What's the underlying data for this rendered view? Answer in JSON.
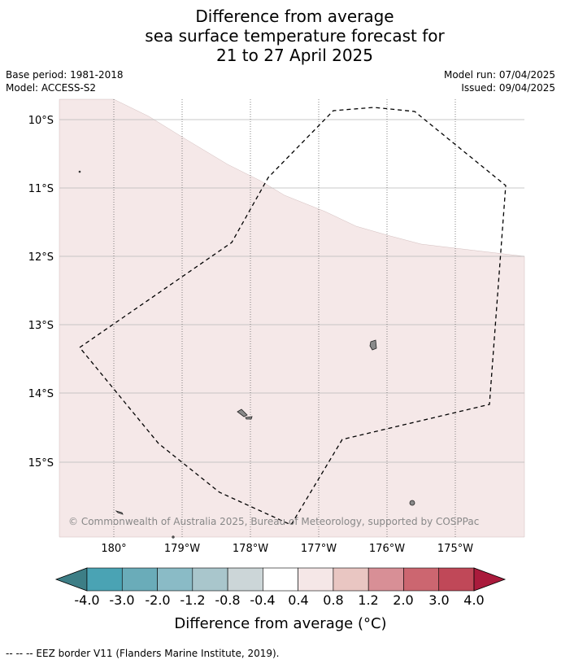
{
  "title": {
    "line1": "Difference from average",
    "line2": "sea surface temperature forecast for",
    "line3": "21 to 27 April 2025"
  },
  "meta": {
    "base_period": "Base period: 1981-2018",
    "model": "Model: ACCESS-S2",
    "model_run": "Model run: 07/04/2025",
    "issued": "Issued: 09/04/2025"
  },
  "map": {
    "lat_labels": [
      "10°S",
      "11°S",
      "12°S",
      "13°S",
      "14°S",
      "15°S"
    ],
    "lon_labels": [
      "180°",
      "179°W",
      "178°W",
      "177°W",
      "176°W",
      "175°W"
    ],
    "copyright": "© Commonwealth of Australia 2025, Bureau of Meteorology, supported by COSPPac",
    "colors": {
      "anomaly_fill": "#f5e8e8",
      "land": "#999999"
    }
  },
  "colorbar": {
    "tick_labels": [
      "-4.0",
      "-3.0",
      "-2.0",
      "-1.2",
      "-0.8",
      "-0.4",
      "0.4",
      "0.8",
      "1.2",
      "2.0",
      "3.0",
      "4.0"
    ],
    "colors": [
      "#3d7e86",
      "#4aa3b4",
      "#6aacb9",
      "#8abbc6",
      "#a9c6cc",
      "#ccd6d8",
      "#ffffff",
      "#f5e7e7",
      "#e9c6c2",
      "#d88f96",
      "#cc6670",
      "#c04858",
      "#aa1b3c"
    ],
    "label": "Difference from average (°C)"
  },
  "footnote": "--  --  -- EEZ border V11 (Flanders Marine Institute, 2019)."
}
